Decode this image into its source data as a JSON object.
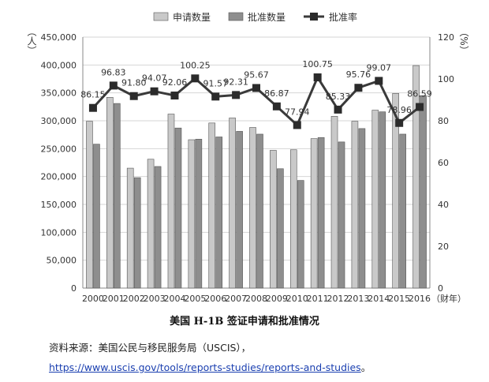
{
  "chart_data": {
    "type": "bar",
    "categories": [
      "2000",
      "2001",
      "2002",
      "2003",
      "2004",
      "2005",
      "2006",
      "2007",
      "2008",
      "2009",
      "2010",
      "2011",
      "2012",
      "2013",
      "2014",
      "2015",
      "2016"
    ],
    "series": [
      {
        "name": "申请数量",
        "kind": "bar",
        "axis": "left",
        "color": "#c9c9c9",
        "values": [
          299000,
          342000,
          215000,
          231000,
          312000,
          266000,
          296000,
          305000,
          288000,
          247000,
          248000,
          268000,
          308000,
          299000,
          319000,
          349000,
          399000
        ]
      },
      {
        "name": "批准数量",
        "kind": "bar",
        "axis": "left",
        "color": "#8e8e8e",
        "values": [
          258000,
          331000,
          198000,
          218000,
          287000,
          267000,
          271000,
          281000,
          276000,
          214000,
          193000,
          270000,
          262000,
          286000,
          316000,
          276000,
          345000
        ]
      },
      {
        "name": "批准率",
        "kind": "line",
        "axis": "right",
        "color": "#3a3a3a",
        "values": [
          86.15,
          96.83,
          91.8,
          94.07,
          92.06,
          100.25,
          91.57,
          92.31,
          95.67,
          86.87,
          77.94,
          100.75,
          85.33,
          95.76,
          99.07,
          78.96,
          86.59
        ],
        "labels": [
          "86.15",
          "96.83",
          "91.80",
          "94.07",
          "92.06",
          "100.25",
          "91.57",
          "92.31",
          "95.67",
          "86.87",
          "77.94",
          "100.75",
          "85.33",
          "95.76",
          "99.07",
          "78.96",
          "86.59"
        ]
      }
    ],
    "yleft": {
      "range": [
        0,
        450000
      ],
      "step": 50000,
      "ticks": [
        "0",
        "50,000",
        "100,000",
        "150,000",
        "200,000",
        "250,000",
        "300,000",
        "350,000",
        "400,000",
        "450,000"
      ],
      "unit": "（人）"
    },
    "yright": {
      "range": [
        0,
        120
      ],
      "step": 20,
      "ticks": [
        "0",
        "20",
        "40",
        "60",
        "80",
        "100",
        "120"
      ],
      "unit": "（%）"
    },
    "xunit": "（财年）",
    "grid": "horizontal",
    "legend_position": "top-center"
  },
  "caption": "美国 H-1B 签证申请和批准情况",
  "source_label": "资料来源：美国公民与移民服务局（USCIS），",
  "source_url": "https://www.uscis.gov/tools/reports-studies/reports-and-studies",
  "source_url_suffix": "。"
}
